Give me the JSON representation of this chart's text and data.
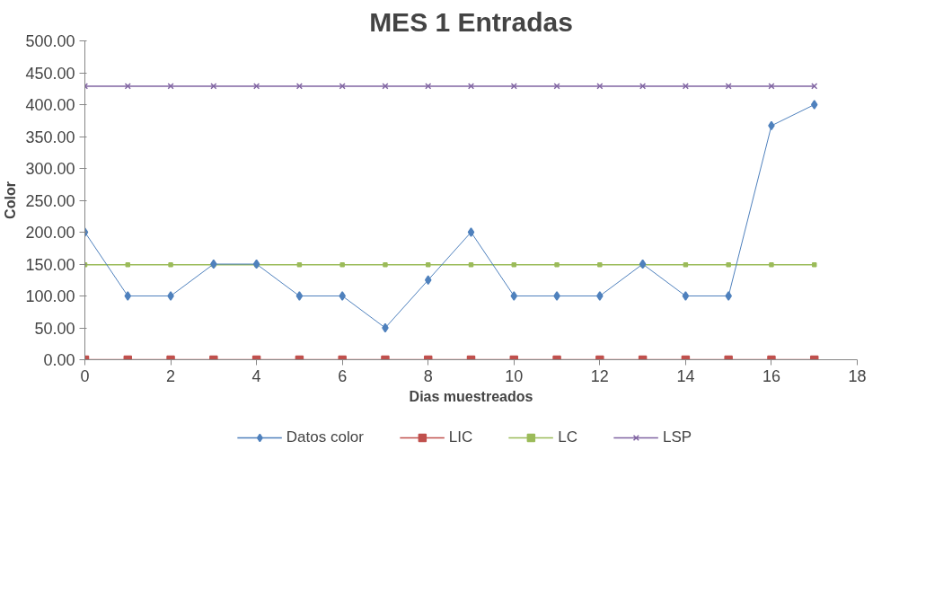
{
  "chart_data": {
    "type": "line",
    "title": "MES 1 Entradas",
    "xlabel": "Dias muestreados",
    "ylabel": "Color",
    "x": [
      0,
      1,
      2,
      3,
      4,
      5,
      6,
      7,
      8,
      9,
      10,
      11,
      12,
      13,
      14,
      15,
      16,
      17
    ],
    "series": [
      {
        "name": "Datos color",
        "color": "#4f81bd",
        "marker": "diamond",
        "values": [
          200,
          100,
          100,
          150,
          150,
          100,
          100,
          50,
          125,
          200,
          100,
          100,
          100,
          150,
          100,
          100,
          367,
          400
        ]
      },
      {
        "name": "LIC",
        "color": "#c0504d",
        "marker": "square",
        "values": [
          0,
          0,
          0,
          0,
          0,
          0,
          0,
          0,
          0,
          0,
          0,
          0,
          0,
          0,
          0,
          0,
          0,
          0
        ]
      },
      {
        "name": "LC",
        "color": "#9bbb59",
        "marker": "square",
        "values": [
          149,
          149,
          149,
          149,
          149,
          149,
          149,
          149,
          149,
          149,
          149,
          149,
          149,
          149,
          149,
          149,
          149,
          149
        ]
      },
      {
        "name": "LSP",
        "color": "#8064a2",
        "marker": "cross",
        "values": [
          429,
          429,
          429,
          429,
          429,
          429,
          429,
          429,
          429,
          429,
          429,
          429,
          429,
          429,
          429,
          429,
          429,
          429
        ]
      }
    ],
    "xlim": [
      0,
      18
    ],
    "xticks": [
      0,
      2,
      4,
      6,
      8,
      10,
      12,
      14,
      16,
      18
    ],
    "ylim": [
      0,
      500
    ],
    "yticks": [
      {
        "value": 0,
        "label": "0.00"
      },
      {
        "value": 50,
        "label": "50.00"
      },
      {
        "value": 100,
        "label": "100.00"
      },
      {
        "value": 150,
        "label": "150.00"
      },
      {
        "value": 200,
        "label": "200.00"
      },
      {
        "value": 250,
        "label": "250.00"
      },
      {
        "value": 300,
        "label": "300.00"
      },
      {
        "value": 350,
        "label": "350.00"
      },
      {
        "value": 400,
        "label": "400.00"
      },
      {
        "value": 450,
        "label": "450.00"
      },
      {
        "value": 500,
        "label": "500.00"
      }
    ],
    "grid": false,
    "legend": "bottom",
    "line_style": "solid"
  }
}
